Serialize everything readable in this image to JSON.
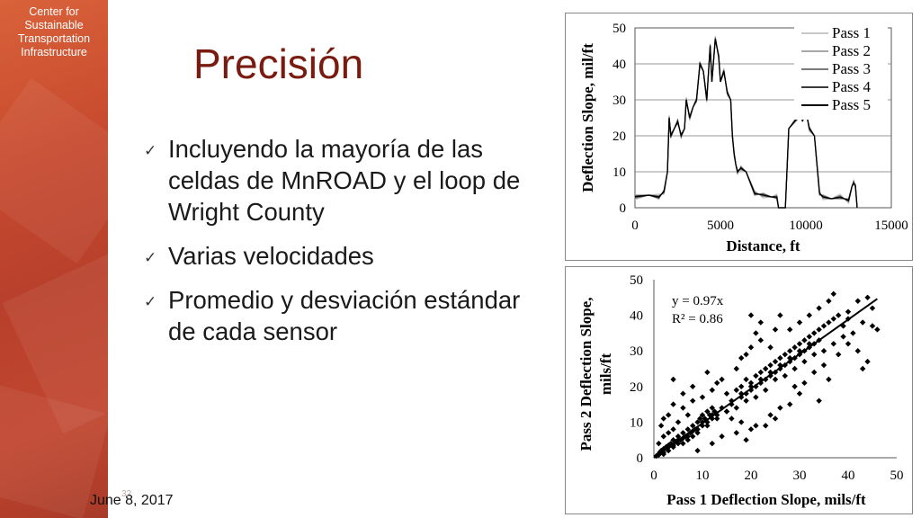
{
  "sidebar": {
    "org_label": "Center for\nSustainable\nTransportation\nInfrastructure"
  },
  "slide": {
    "title": "Precisión",
    "bullets": [
      "Incluyendo la mayoría de las celdas de MnROAD y el loop de Wright County",
      "Varias velocidades",
      "Promedio y desviación estándar de cada sensor"
    ],
    "date": "June 8, 2017",
    "page_number": "32"
  },
  "chart_data": [
    {
      "type": "line",
      "xlabel": "Distance, ft",
      "ylabel": "Deflection Slope, mil/ft",
      "xlim": [
        0,
        15000
      ],
      "ylim": [
        0,
        50
      ],
      "xticks": [
        0,
        5000,
        10000,
        15000
      ],
      "yticks": [
        0,
        10,
        20,
        30,
        40,
        50
      ],
      "grid": "horizontal",
      "legend_position": "top-right",
      "series": [
        {
          "name": "Pass 1",
          "color": "#c8c8c8"
        },
        {
          "name": "Pass 2",
          "color": "#a8a8a8"
        },
        {
          "name": "Pass 3",
          "color": "#7a7a7a"
        },
        {
          "name": "Pass 4",
          "color": "#3a3a3a"
        },
        {
          "name": "Pass 5",
          "color": "#000000"
        }
      ],
      "x": [
        0,
        800,
        1400,
        1700,
        1900,
        2000,
        2100,
        2300,
        2500,
        2700,
        2900,
        3000,
        3200,
        3400,
        3600,
        3800,
        4000,
        4200,
        4400,
        4500,
        4700,
        4900,
        5000,
        5200,
        5400,
        5600,
        5700,
        5800,
        5900,
        6000,
        6200,
        6500,
        7000,
        7500,
        8000,
        8300,
        8400,
        8600,
        8700,
        8800,
        9000,
        9500,
        9700,
        9800,
        10000,
        10200,
        10500,
        10800,
        11000,
        11500,
        12000,
        12500,
        12700,
        12800,
        12900,
        13000
      ],
      "y": [
        3,
        3.5,
        3,
        4.5,
        10,
        25,
        20,
        22,
        24,
        20,
        22,
        30,
        25,
        28,
        30,
        40,
        38,
        30,
        45,
        35,
        47,
        42,
        35,
        38,
        32,
        30,
        20,
        15,
        12,
        10,
        11,
        10,
        4,
        3.5,
        3,
        3,
        0,
        0,
        0,
        0,
        22,
        25,
        28,
        24,
        27,
        22,
        20,
        4,
        3,
        2.5,
        3,
        2,
        6,
        7,
        6,
        0
      ]
    },
    {
      "type": "scatter",
      "xlabel": "Pass 1 Deflection Slope, mils/ft",
      "ylabel": "Pass 2 Deflection Slope, mils/ft",
      "xlim": [
        0,
        50
      ],
      "ylim": [
        0,
        50
      ],
      "xticks": [
        0,
        10,
        20,
        30,
        40,
        50
      ],
      "yticks": [
        0,
        10,
        20,
        30,
        40,
        50
      ],
      "annotation": [
        "y = 0.97x",
        "R² = 0.86"
      ],
      "trendline": {
        "slope": 0.97,
        "intercept": 0,
        "x_range": [
          0,
          46
        ]
      },
      "points": [
        [
          0.5,
          0.5
        ],
        [
          1,
          0.8
        ],
        [
          1.2,
          1.5
        ],
        [
          1.5,
          2
        ],
        [
          2,
          1
        ],
        [
          2,
          2.5
        ],
        [
          2.5,
          3
        ],
        [
          3,
          2
        ],
        [
          3,
          3.5
        ],
        [
          3.5,
          4
        ],
        [
          4,
          3
        ],
        [
          4,
          5
        ],
        [
          4.5,
          4.5
        ],
        [
          5,
          4
        ],
        [
          5,
          6
        ],
        [
          5.5,
          5
        ],
        [
          6,
          7
        ],
        [
          6,
          4
        ],
        [
          6.5,
          6
        ],
        [
          7,
          8
        ],
        [
          7,
          5
        ],
        [
          7.5,
          7
        ],
        [
          8,
          9
        ],
        [
          8,
          6
        ],
        [
          8.5,
          8
        ],
        [
          9,
          10
        ],
        [
          9,
          7
        ],
        [
          9.5,
          11
        ],
        [
          10,
          9
        ],
        [
          10,
          12
        ],
        [
          10.5,
          11
        ],
        [
          11,
          13
        ],
        [
          11,
          10
        ],
        [
          11.5,
          12
        ],
        [
          12,
          14
        ],
        [
          12,
          11
        ],
        [
          12.5,
          13
        ],
        [
          13,
          12
        ],
        [
          1,
          4
        ],
        [
          2,
          6
        ],
        [
          3,
          7
        ],
        [
          4,
          8
        ],
        [
          1.5,
          9
        ],
        [
          2,
          11
        ],
        [
          3,
          12
        ],
        [
          4,
          15
        ],
        [
          5,
          10
        ],
        [
          6,
          14
        ],
        [
          7,
          12
        ],
        [
          8,
          16
        ],
        [
          15,
          18
        ],
        [
          16,
          15
        ],
        [
          17,
          19
        ],
        [
          18,
          20
        ],
        [
          18,
          17
        ],
        [
          19,
          22
        ],
        [
          19,
          18
        ],
        [
          20,
          21
        ],
        [
          20,
          19
        ],
        [
          21,
          23
        ],
        [
          21,
          20
        ],
        [
          22,
          24
        ],
        [
          22,
          21
        ],
        [
          23,
          25
        ],
        [
          23,
          22
        ],
        [
          24,
          26
        ],
        [
          24,
          23
        ],
        [
          25,
          27
        ],
        [
          25,
          24
        ],
        [
          26,
          28
        ],
        [
          26,
          25
        ],
        [
          27,
          29
        ],
        [
          27,
          26
        ],
        [
          28,
          30
        ],
        [
          28,
          27
        ],
        [
          29,
          31
        ],
        [
          29,
          28
        ],
        [
          30,
          32
        ],
        [
          30,
          29
        ],
        [
          31,
          33
        ],
        [
          31,
          30
        ],
        [
          32,
          34
        ],
        [
          32,
          31
        ],
        [
          33,
          35
        ],
        [
          33,
          32
        ],
        [
          34,
          36
        ],
        [
          35,
          37
        ],
        [
          36,
          38
        ],
        [
          37,
          39
        ],
        [
          38,
          40
        ],
        [
          17,
          25
        ],
        [
          18,
          28
        ],
        [
          19,
          29
        ],
        [
          20,
          31
        ],
        [
          21,
          35
        ],
        [
          22,
          38
        ],
        [
          20,
          40
        ],
        [
          22,
          33
        ],
        [
          24,
          31
        ],
        [
          25,
          36
        ],
        [
          26,
          40
        ],
        [
          28,
          36
        ],
        [
          30,
          38
        ],
        [
          32,
          40
        ],
        [
          34,
          42
        ],
        [
          36,
          44
        ],
        [
          37,
          46
        ],
        [
          40,
          41
        ],
        [
          42,
          44
        ],
        [
          44,
          45
        ],
        [
          45,
          37
        ],
        [
          46,
          36
        ],
        [
          40,
          32
        ],
        [
          42,
          30
        ],
        [
          43,
          25
        ],
        [
          44,
          27
        ],
        [
          38,
          29
        ],
        [
          35,
          26
        ],
        [
          36,
          22
        ],
        [
          34,
          16
        ],
        [
          30,
          18
        ],
        [
          28,
          15
        ],
        [
          25,
          11
        ],
        [
          23,
          9
        ],
        [
          20,
          8
        ],
        [
          18,
          10
        ],
        [
          16,
          11
        ],
        [
          15,
          13
        ],
        [
          14,
          22
        ],
        [
          12,
          19
        ],
        [
          10,
          17
        ],
        [
          8,
          20
        ],
        [
          6,
          18
        ],
        [
          4,
          22
        ],
        [
          11,
          24
        ],
        [
          13,
          21
        ],
        [
          9,
          2
        ],
        [
          12,
          4
        ],
        [
          14,
          6
        ],
        [
          17,
          7
        ],
        [
          19,
          5
        ],
        [
          21,
          9
        ],
        [
          24,
          12
        ],
        [
          26,
          14
        ],
        [
          29,
          20
        ],
        [
          31,
          21
        ],
        [
          33,
          24
        ],
        [
          39,
          34
        ],
        [
          41,
          35
        ],
        [
          43,
          38
        ],
        [
          45,
          42
        ],
        [
          39,
          37
        ],
        [
          40,
          39
        ],
        [
          37,
          32
        ],
        [
          35,
          30
        ],
        [
          33,
          29
        ],
        [
          31,
          27
        ],
        [
          29,
          25
        ],
        [
          27,
          23
        ],
        [
          25,
          22
        ],
        [
          23,
          19
        ],
        [
          21,
          17
        ],
        [
          19,
          16
        ],
        [
          17,
          14
        ],
        [
          15,
          13
        ],
        [
          13,
          11
        ],
        [
          11,
          9
        ],
        [
          9,
          8
        ],
        [
          7,
          6
        ],
        [
          5,
          5
        ],
        [
          3,
          3
        ],
        [
          1,
          1
        ],
        [
          2,
          1.5
        ],
        [
          4,
          3.5
        ],
        [
          6,
          5.5
        ],
        [
          8,
          7.5
        ],
        [
          10,
          10
        ],
        [
          12,
          12
        ],
        [
          14,
          14
        ],
        [
          16,
          16
        ],
        [
          18,
          18
        ],
        [
          20,
          20
        ],
        [
          22,
          22
        ],
        [
          24,
          24
        ],
        [
          26,
          26
        ],
        [
          28,
          28
        ],
        [
          30,
          30
        ],
        [
          32,
          32
        ],
        [
          34,
          33
        ]
      ]
    }
  ]
}
